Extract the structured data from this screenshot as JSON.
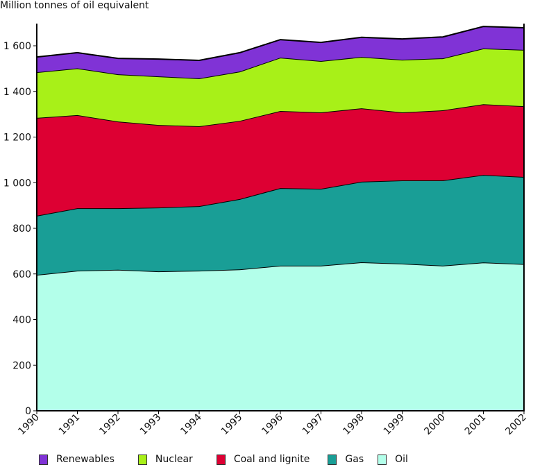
{
  "chart_data": {
    "type": "area",
    "stacked": true,
    "title": "",
    "ylabel": "Million tonnes of oil equivalent",
    "xlabel": "",
    "ylim": [
      0,
      1700
    ],
    "yticks": [
      0,
      200,
      400,
      600,
      800,
      1000,
      1200,
      1400,
      1600
    ],
    "ytick_labels": [
      "0",
      "200",
      "400",
      "600",
      "800",
      "1 000",
      "1 200",
      "1 400",
      "1 600"
    ],
    "x": [
      "1990",
      "1991",
      "1992",
      "1993",
      "1994",
      "1995",
      "1996",
      "1997",
      "1998",
      "1999",
      "2000",
      "2001",
      "2002"
    ],
    "legend_position": "bottom",
    "grid": false,
    "series": [
      {
        "name": "Oil",
        "color": "#b3ffea",
        "values": [
          596,
          614,
          618,
          611,
          614,
          620,
          636,
          636,
          651,
          645,
          636,
          650,
          643
        ]
      },
      {
        "name": "Gas",
        "color": "#199e96",
        "values": [
          259,
          274,
          270,
          280,
          283,
          308,
          340,
          337,
          353,
          365,
          374,
          384,
          382
        ]
      },
      {
        "name": "Coal and lignite",
        "color": "#dd0033",
        "values": [
          429,
          408,
          380,
          362,
          350,
          343,
          338,
          335,
          322,
          298,
          307,
          310,
          310
        ]
      },
      {
        "name": "Nuclear",
        "color": "#a8f018",
        "values": [
          200,
          205,
          207,
          213,
          210,
          216,
          234,
          225,
          225,
          231,
          228,
          244,
          247
        ]
      },
      {
        "name": "Renewables",
        "color": "#8033d6",
        "values": [
          67,
          69,
          70,
          76,
          79,
          83,
          79,
          82,
          86,
          91,
          94,
          97,
          97
        ]
      }
    ],
    "legend_order": [
      "Renewables",
      "Nuclear",
      "Coal and lignite",
      "Gas",
      "Oil"
    ]
  }
}
